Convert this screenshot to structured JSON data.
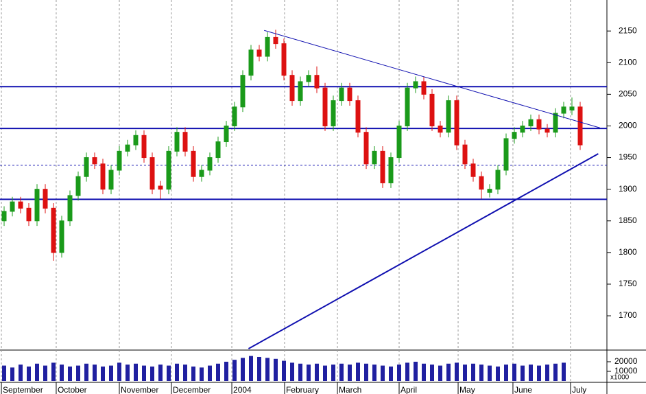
{
  "chart_data": {
    "type": "candlestick",
    "open": [
      1850,
      1865,
      1880,
      1870,
      1850,
      1900,
      1870,
      1800,
      1850,
      1890,
      1920,
      1950,
      1940,
      1900,
      1930,
      1960,
      1970,
      1985,
      1950,
      1905,
      1900,
      1960,
      1990,
      1960,
      1920,
      1930,
      1950,
      1975,
      2000,
      2030,
      2080,
      2120,
      2110,
      2140,
      2130,
      2080,
      2040,
      2070,
      2080,
      2060,
      2000,
      2040,
      2060,
      2040,
      1990,
      1940,
      1960,
      1910,
      1950,
      2000,
      2060,
      2070,
      2050,
      2000,
      1990,
      2040,
      1970,
      1940,
      1920,
      1895,
      1900,
      1930,
      1980,
      1990,
      2000,
      2010,
      1995,
      1990,
      2020,
      2025,
      2030
    ],
    "high": [
      1873,
      1888,
      1888,
      1878,
      1908,
      1908,
      1878,
      1858,
      1898,
      1928,
      1958,
      1958,
      1948,
      1938,
      1968,
      1978,
      1993,
      1993,
      1958,
      1913,
      1968,
      1998,
      1998,
      1968,
      1938,
      1958,
      1983,
      2008,
      2038,
      2088,
      2128,
      2128,
      2148,
      2152,
      2138,
      2088,
      2078,
      2088,
      2094,
      2068,
      2048,
      2068,
      2068,
      2048,
      1998,
      1968,
      1968,
      1958,
      2008,
      2068,
      2078,
      2078,
      2058,
      2008,
      2048,
      2048,
      1978,
      1948,
      1928,
      1908,
      1938,
      1988,
      1998,
      2008,
      2018,
      2018,
      2003,
      2028,
      2038,
      2045,
      2038
    ],
    "low": [
      1842,
      1857,
      1862,
      1842,
      1842,
      1862,
      1787,
      1792,
      1842,
      1882,
      1912,
      1932,
      1892,
      1892,
      1922,
      1952,
      1962,
      1942,
      1892,
      1885,
      1892,
      1952,
      1952,
      1912,
      1912,
      1922,
      1942,
      1967,
      1992,
      2022,
      2072,
      2102,
      2102,
      2122,
      2072,
      2032,
      2032,
      2062,
      2052,
      1992,
      1992,
      2032,
      2032,
      1982,
      1932,
      1932,
      1902,
      1902,
      1942,
      1992,
      2052,
      2042,
      1992,
      1982,
      1982,
      1962,
      1932,
      1912,
      1885,
      1887,
      1892,
      1922,
      1972,
      1982,
      1992,
      1987,
      1982,
      1982,
      2012,
      2017,
      1962
    ],
    "close": [
      1865,
      1880,
      1870,
      1850,
      1900,
      1870,
      1800,
      1850,
      1890,
      1920,
      1950,
      1940,
      1900,
      1930,
      1960,
      1970,
      1985,
      1950,
      1900,
      1900,
      1960,
      1990,
      1960,
      1920,
      1930,
      1950,
      1975,
      2000,
      2030,
      2080,
      2120,
      2110,
      2140,
      2130,
      2080,
      2040,
      2070,
      2080,
      2060,
      2000,
      2040,
      2060,
      2040,
      1990,
      1940,
      1960,
      1910,
      1950,
      2000,
      2060,
      2070,
      2050,
      2000,
      1990,
      2040,
      1970,
      1940,
      1920,
      1900,
      1900,
      1930,
      1980,
      1990,
      2000,
      2010,
      1995,
      1990,
      2020,
      2030,
      2030,
      1970
    ],
    "volume": [
      16000,
      14000,
      17000,
      15000,
      18000,
      16000,
      19000,
      17000,
      15000,
      16000,
      18000,
      17000,
      15000,
      16000,
      19000,
      17000,
      18000,
      16000,
      15000,
      17000,
      16000,
      18000,
      17000,
      15000,
      14000,
      16000,
      18000,
      20000,
      22000,
      24000,
      26000,
      25000,
      24000,
      23000,
      21000,
      19000,
      18000,
      17000,
      18000,
      16000,
      17000,
      18000,
      17000,
      19000,
      18000,
      17000,
      16000,
      15000,
      17000,
      19000,
      20000,
      18000,
      17000,
      16000,
      18000,
      19000,
      17000,
      18000,
      17000,
      16000,
      15000,
      17000,
      18000,
      16000,
      17000,
      16000,
      17000,
      18000,
      19000,
      null,
      null
    ],
    "up_color": "#1a9a1a",
    "down_color": "#dd1111",
    "xlim": [
      -0.5,
      73.25
    ],
    "ylim": [
      1648,
      2199
    ],
    "yticks": [
      1700,
      1750,
      1800,
      1850,
      1900,
      1950,
      2000,
      2050,
      2100,
      2150
    ],
    "volume_ylim": [
      0,
      30700
    ],
    "volume_yticks": [
      10000,
      20000
    ],
    "volume_unit": "x1000",
    "xticks": [
      {
        "value": -0.33,
        "label": "September"
      },
      {
        "value": 6.33,
        "label": "October"
      },
      {
        "value": 14,
        "label": "November"
      },
      {
        "value": 20.33,
        "label": "December"
      },
      {
        "value": 27.67,
        "label": "2004"
      },
      {
        "value": 34.08,
        "label": "February"
      },
      {
        "value": 40.5,
        "label": "March"
      },
      {
        "value": 48,
        "label": "April"
      },
      {
        "value": 55.17,
        "label": "May"
      },
      {
        "value": 61.83,
        "label": "June"
      },
      {
        "value": 68.83,
        "label": "July"
      }
    ],
    "hlines": [
      {
        "value": 2062,
        "dashed": false
      },
      {
        "value": 1996,
        "dashed": false
      },
      {
        "value": 1938,
        "dashed": true
      },
      {
        "value": 1884,
        "dashed": false
      }
    ],
    "trendlines": [
      {
        "x": [
          31.6,
          72.4
        ],
        "y": [
          2151,
          1997
        ],
        "width": 1
      },
      {
        "x": [
          29.7,
          72.2
        ],
        "y": [
          1648,
          1956
        ],
        "width": 2
      }
    ],
    "line_color": "#1010b0"
  }
}
